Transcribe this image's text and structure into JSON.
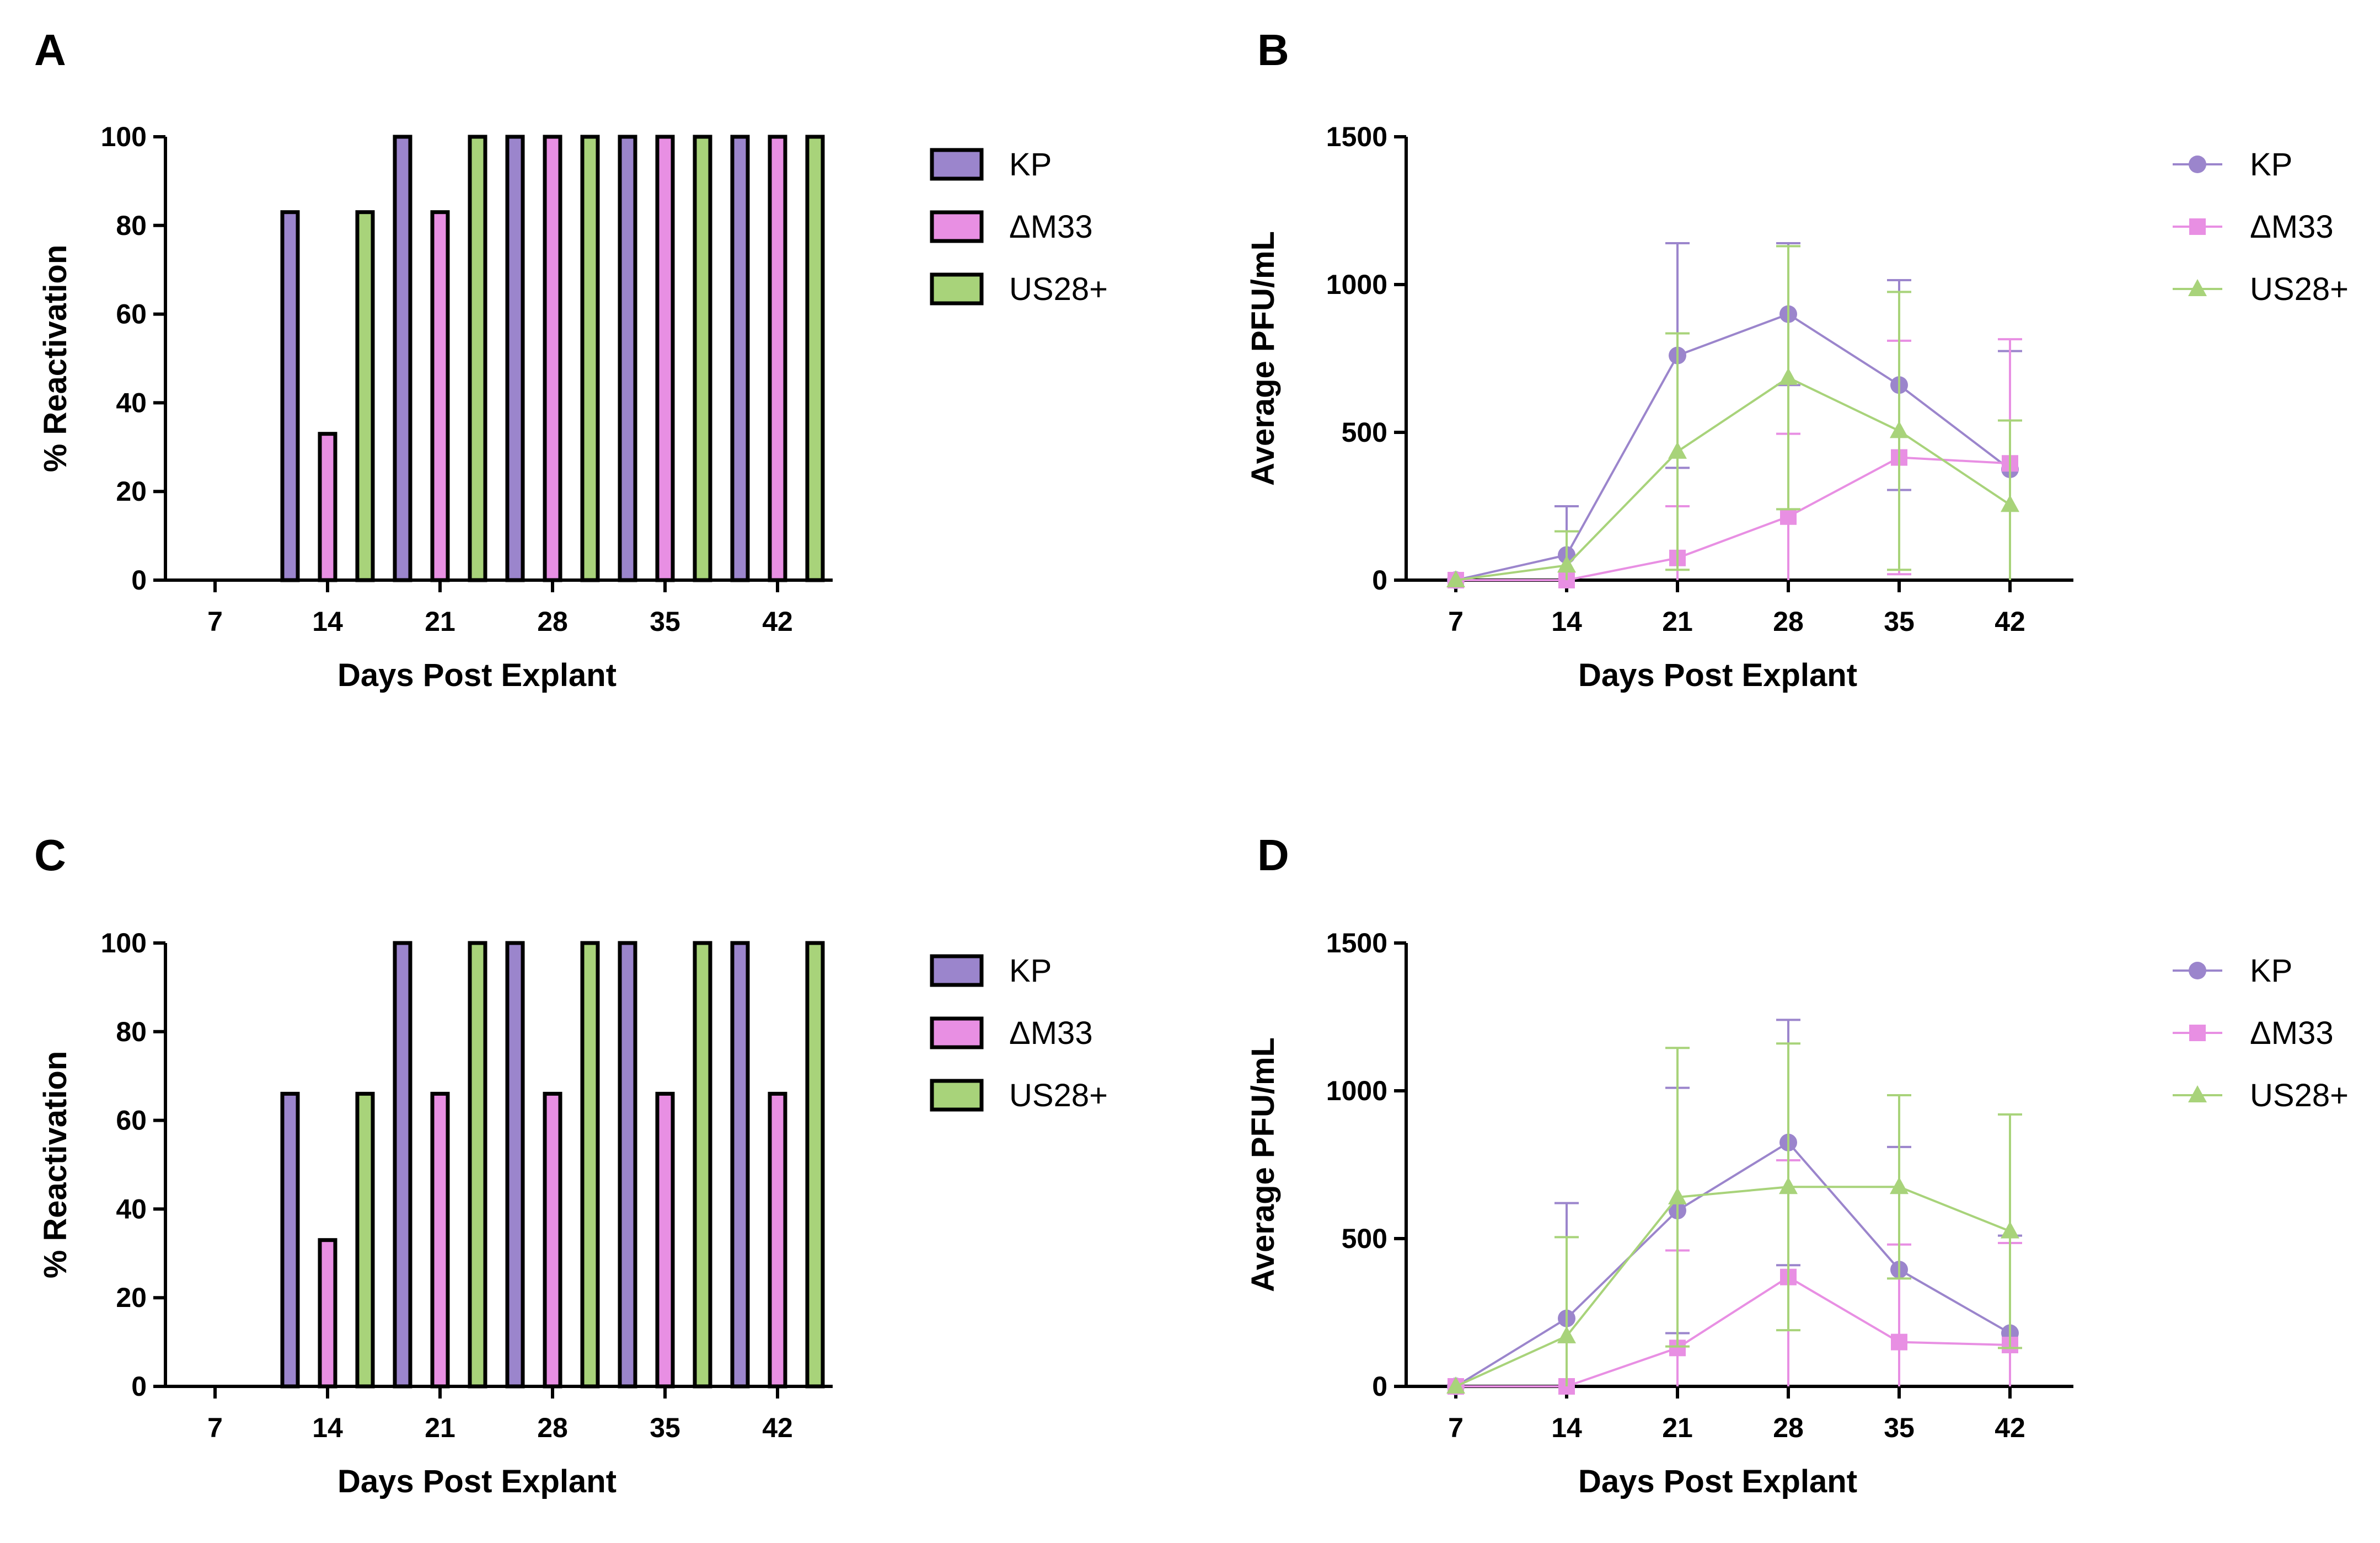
{
  "panels": [
    {
      "letter": "A"
    },
    {
      "letter": "B"
    },
    {
      "letter": "C"
    },
    {
      "letter": "D"
    }
  ],
  "colors": {
    "KP": "#9b85cc",
    "dM33": "#e88fe3",
    "US28": "#a8d37a"
  },
  "chart_data": [
    {
      "panel": "A",
      "type": "bar",
      "title": "",
      "xlabel": "Days Post Explant",
      "ylabel": "% Reactivation",
      "categories": [
        "7",
        "14",
        "21",
        "28",
        "35",
        "42"
      ],
      "ylim": [
        0,
        100
      ],
      "yticks": [
        "0",
        "20",
        "40",
        "60",
        "80",
        "100"
      ],
      "legend_position": "right",
      "series": [
        {
          "name": "KP",
          "values": [
            0,
            83,
            100,
            100,
            100,
            100
          ]
        },
        {
          "name": "ΔM33",
          "values": [
            0,
            33,
            83,
            100,
            100,
            100
          ]
        },
        {
          "name": "US28+",
          "values": [
            0,
            83,
            100,
            100,
            100,
            100
          ]
        }
      ]
    },
    {
      "panel": "B",
      "type": "line",
      "title": "",
      "xlabel": "Days Post Explant",
      "ylabel": "Average PFU/mL",
      "x": [
        "7",
        "14",
        "21",
        "28",
        "35",
        "42"
      ],
      "ylim": [
        0,
        1500
      ],
      "yticks": [
        "0",
        "500",
        "1000",
        "1500"
      ],
      "legend_position": "right",
      "series": [
        {
          "name": "KP",
          "marker": "circle",
          "values": [
            0,
            85,
            760,
            900,
            660,
            375
          ],
          "error": [
            0,
            165,
            380,
            240,
            355,
            400
          ]
        },
        {
          "name": "ΔM33",
          "marker": "square",
          "values": [
            0,
            0,
            75,
            215,
            415,
            395
          ],
          "error": [
            0,
            0,
            175,
            280,
            395,
            420
          ]
        },
        {
          "name": "US28+",
          "marker": "triangle",
          "values": [
            0,
            50,
            435,
            685,
            505,
            255
          ],
          "error": [
            0,
            115,
            400,
            445,
            470,
            285
          ]
        }
      ]
    },
    {
      "panel": "C",
      "type": "bar",
      "title": "",
      "xlabel": "Days Post Explant",
      "ylabel": "% Reactivation",
      "categories": [
        "7",
        "14",
        "21",
        "28",
        "35",
        "42"
      ],
      "ylim": [
        0,
        100
      ],
      "yticks": [
        "0",
        "20",
        "40",
        "60",
        "80",
        "100"
      ],
      "legend_position": "right",
      "series": [
        {
          "name": "KP",
          "values": [
            0,
            66,
            100,
            100,
            100,
            100
          ]
        },
        {
          "name": "ΔM33",
          "values": [
            0,
            33,
            66,
            66,
            66,
            66
          ]
        },
        {
          "name": "US28+",
          "values": [
            0,
            66,
            100,
            100,
            100,
            100
          ]
        }
      ]
    },
    {
      "panel": "D",
      "type": "line",
      "title": "",
      "xlabel": "Days Post Explant",
      "ylabel": "Average PFU/mL",
      "x": [
        "7",
        "14",
        "21",
        "28",
        "35",
        "42"
      ],
      "ylim": [
        0,
        1500
      ],
      "yticks": [
        "0",
        "500",
        "1000",
        "1500"
      ],
      "legend_position": "right",
      "series": [
        {
          "name": "KP",
          "marker": "circle",
          "values": [
            0,
            230,
            595,
            825,
            395,
            180
          ],
          "error": [
            0,
            390,
            415,
            415,
            415,
            330
          ]
        },
        {
          "name": "ΔM33",
          "marker": "square",
          "values": [
            0,
            0,
            130,
            370,
            150,
            140
          ],
          "error": [
            0,
            0,
            330,
            395,
            330,
            345
          ]
        },
        {
          "name": "US28+",
          "marker": "triangle",
          "values": [
            0,
            170,
            640,
            675,
            675,
            525
          ],
          "error": [
            0,
            335,
            505,
            485,
            310,
            395
          ]
        }
      ]
    }
  ]
}
